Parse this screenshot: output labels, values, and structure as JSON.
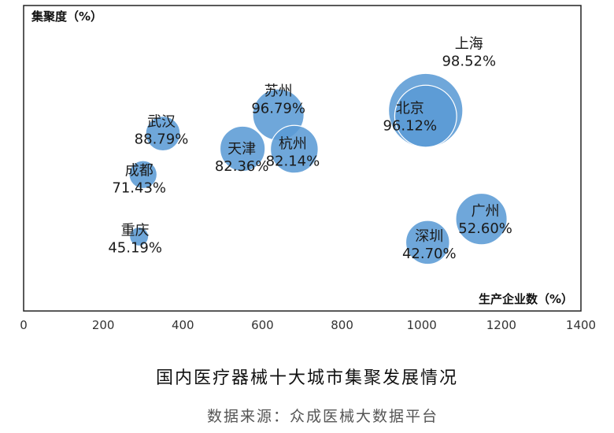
{
  "chart_data": {
    "type": "bubble",
    "ylabel": "集聚度（%）",
    "xlabel": "生产企业数（%）",
    "xlim": [
      0,
      1400
    ],
    "x_ticks": [
      "0",
      "200",
      "400",
      "600",
      "800",
      "1000",
      "1200",
      "1400"
    ],
    "grid": false,
    "color": "#5b9bd5",
    "points": [
      {
        "name": "上海",
        "value_label": "98.52%",
        "x": 1010,
        "y": 98.52,
        "size": 4.6
      },
      {
        "name": "北京",
        "value_label": "96.12%",
        "x": 1010,
        "y": 96.12,
        "size": 3.2
      },
      {
        "name": "苏州",
        "value_label": "96.79%",
        "x": 640,
        "y": 96.79,
        "size": 2.2
      },
      {
        "name": "杭州",
        "value_label": "82.14%",
        "x": 680,
        "y": 82.14,
        "size": 1.9
      },
      {
        "name": "天津",
        "value_label": "82.36%",
        "x": 550,
        "y": 82.36,
        "size": 1.7
      },
      {
        "name": "武汉",
        "value_label": "88.79%",
        "x": 350,
        "y": 88.79,
        "size": 1.0
      },
      {
        "name": "成都",
        "value_label": "71.43%",
        "x": 300,
        "y": 71.43,
        "size": 0.65
      },
      {
        "name": "重庆",
        "value_label": "45.19%",
        "x": 290,
        "y": 45.19,
        "size": 0.3
      },
      {
        "name": "广州",
        "value_label": "52.60%",
        "x": 1150,
        "y": 52.6,
        "size": 2.2
      },
      {
        "name": "深圳",
        "value_label": "42.70%",
        "x": 1015,
        "y": 42.7,
        "size": 1.6
      }
    ]
  },
  "caption": "国内医疗器械十大城市集聚发展情况",
  "source": "数据来源：众成医械大数据平台"
}
